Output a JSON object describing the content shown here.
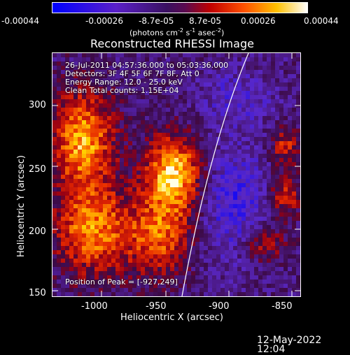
{
  "colorbar": {
    "tick_labels": [
      "-0.00044",
      "-0.00026",
      "-8.7e-05",
      "8.7e-05",
      "0.00026",
      "0.00044"
    ],
    "units_prefix": "(photons cm",
    "units_sup1": "-2",
    "units_mid1": " s",
    "units_sup2": "-1",
    "units_mid2": " asec",
    "units_sup3": "-2",
    "units_suffix": ")"
  },
  "plot": {
    "title": "Reconstructed RHESSI Image",
    "info_lines": [
      "26-Jul-2011 04:57:36.000 to 05:03:36.000",
      "Detectors: 3F 4F 5F 6F 7F 8F, Att 0",
      "Energy Range: 12.0 - 25.0 keV",
      "Clean     Total counts: 1.15E+04"
    ],
    "peak_text": "Position of Peak = [-927,249]",
    "x_axis_label": "Heliocentric X (arcsec)",
    "y_axis_label": "Heliocentric Y (arcsec)",
    "x_ticks": [
      "-1000",
      "-950",
      "-900",
      "-850"
    ],
    "y_ticks": [
      "300",
      "250",
      "200",
      "150"
    ]
  },
  "footer": {
    "timestamp": "12-May-2022 12:04"
  }
}
